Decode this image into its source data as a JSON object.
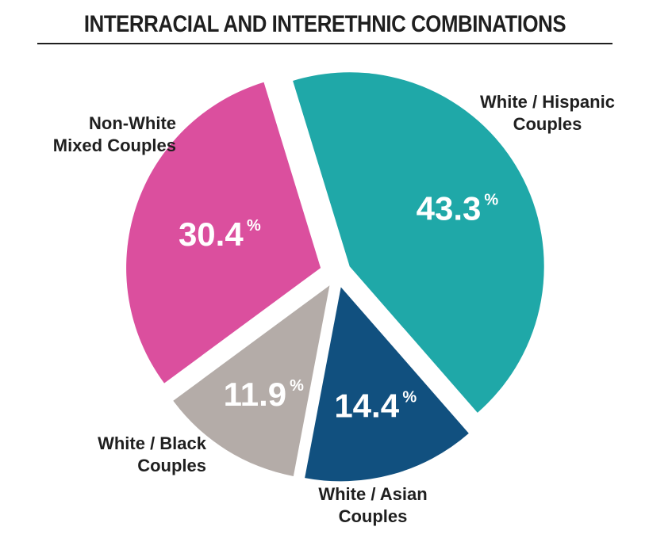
{
  "chart_data": {
    "type": "pie",
    "title": "INTERRACIAL AND INTERETHNIC COMBINATIONS",
    "percent_sign": "%",
    "categories": [
      "White / Hispanic Couples",
      "White / Asian Couples",
      "White / Black Couples",
      "Non-White Mixed Couples"
    ],
    "values": [
      43.3,
      14.4,
      11.9,
      30.4
    ],
    "value_labels": [
      "43.3",
      "14.4",
      "11.9",
      "30.4"
    ],
    "label_lines": [
      [
        "White / Hispanic",
        "Couples"
      ],
      [
        "White / Asian",
        "Couples"
      ],
      [
        "White / Black",
        "Couples"
      ],
      [
        "Non-White",
        "Mixed Couples"
      ]
    ],
    "colors": [
      "#1fa8a8",
      "#11507f",
      "#b4aca8",
      "#db4f9e"
    ],
    "exploded": true,
    "legend": "none"
  }
}
